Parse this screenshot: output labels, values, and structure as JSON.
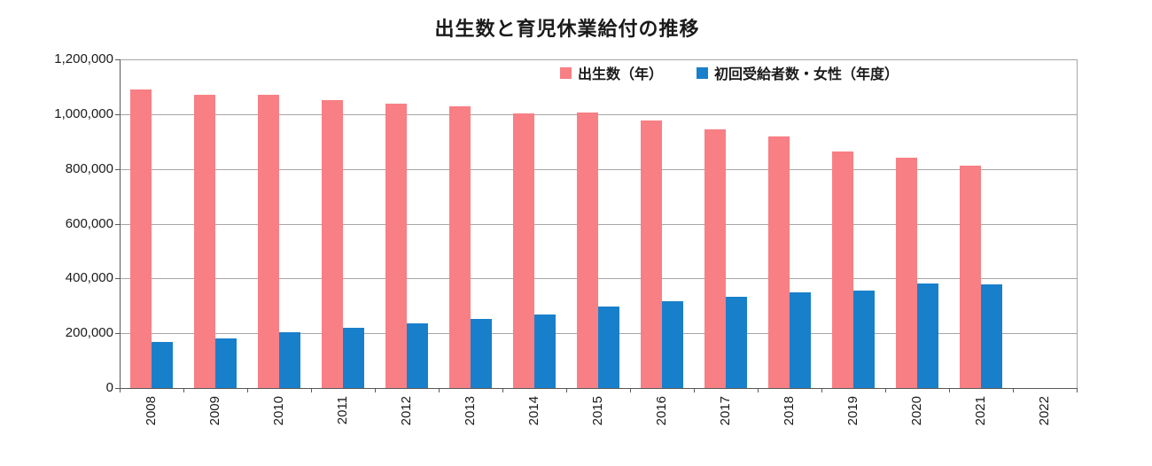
{
  "page": {
    "background": "#ffffff"
  },
  "colors": {
    "births_bar": "#f87f84",
    "recipients_bar": "#1880cb",
    "gridline": "#a6a6a6",
    "axis": "#595959",
    "text": "#1a1a1a"
  },
  "chart_data": {
    "type": "bar",
    "title": "出生数と育児休業給付の推移",
    "xlabel": "",
    "ylabel": "",
    "categories": [
      "2008",
      "2009",
      "2010",
      "2011",
      "2012",
      "2013",
      "2014",
      "2015",
      "2016",
      "2017",
      "2018",
      "2019",
      "2020",
      "2021",
      "2022"
    ],
    "series": [
      {
        "name": "出生数（年）",
        "color": "#f87f84",
        "values": [
          1091000,
          1070000,
          1071000,
          1051000,
          1037000,
          1030000,
          1004000,
          1006000,
          977000,
          946000,
          918000,
          865000,
          841000,
          812000,
          null
        ]
      },
      {
        "name": "初回受給者数・女性（年度）",
        "color": "#1880cb",
        "values": [
          168000,
          181000,
          203000,
          220000,
          237000,
          253000,
          270000,
          297000,
          317000,
          334000,
          350000,
          356000,
          381000,
          380000,
          null
        ]
      }
    ],
    "ylim": [
      0,
      1200000
    ],
    "ytick_interval": 200000,
    "ytick_labels": [
      "0",
      "200,000",
      "400,000",
      "600,000",
      "800,000",
      "1,000,000",
      "1,200,000"
    ],
    "grid": "horizontal-only",
    "legend_position": "top-inside",
    "xtick_rotation": -90
  }
}
